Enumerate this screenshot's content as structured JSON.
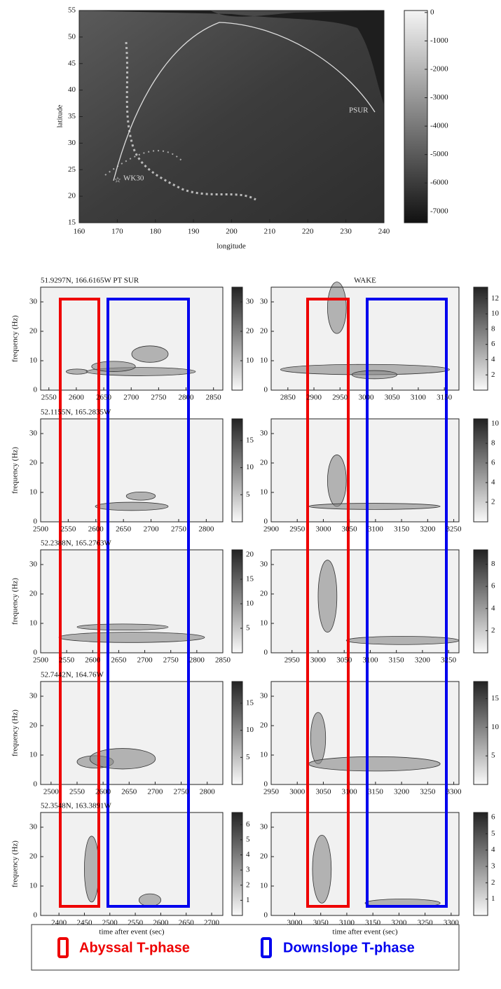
{
  "map": {
    "xlabel": "longitude",
    "ylabel": "latitude",
    "xlim": [
      160,
      240
    ],
    "ylim": [
      15,
      55
    ],
    "xticks": [
      160,
      170,
      180,
      190,
      200,
      210,
      220,
      230,
      240
    ],
    "yticks": [
      15,
      20,
      25,
      30,
      35,
      40,
      45,
      50,
      55
    ],
    "colorbar": {
      "lim": [
        -7400,
        70
      ],
      "ticks": [
        0,
        -1000,
        -2000,
        -3000,
        -4000,
        -5000,
        -6000,
        -7000
      ]
    },
    "stations": [
      "WK30",
      "PSUR"
    ]
  },
  "ylabel": "frequency (Hz)",
  "xlabel": "time after event (sec)",
  "panels": [
    {
      "title": "51.9297N, 166.6165W PT SUR",
      "xlim": [
        2535,
        2867
      ],
      "xticks": [
        2550,
        2600,
        2650,
        2700,
        2750,
        2800,
        2850
      ],
      "ylim": [
        0,
        35
      ],
      "yticks": [
        0,
        10,
        20,
        30
      ],
      "clim": [
        0,
        35
      ],
      "cticks": [
        10,
        20,
        30
      ]
    },
    {
      "title": "WAKE",
      "xlim": [
        2818,
        3178
      ],
      "xticks": [
        2850,
        2900,
        2950,
        3000,
        3050,
        3100,
        3150
      ],
      "ylim": [
        0,
        35
      ],
      "yticks": [
        0,
        10,
        20,
        30
      ],
      "clim": [
        0,
        13.5
      ],
      "cticks": [
        2,
        4,
        6,
        8,
        10,
        12
      ]
    },
    {
      "title": "52.1155N, 165.2835W",
      "xlim": [
        2500,
        2830
      ],
      "xticks": [
        2500,
        2550,
        2600,
        2650,
        2700,
        2750,
        2800
      ],
      "ylim": [
        0,
        35
      ],
      "yticks": [
        0,
        10,
        20,
        30
      ],
      "clim": [
        0,
        19
      ],
      "cticks": [
        5,
        10,
        15
      ]
    },
    {
      "title": null,
      "xlim": [
        2900,
        3260
      ],
      "xticks": [
        2900,
        2950,
        3000,
        3050,
        3100,
        3150,
        3200,
        3250
      ],
      "ylim": [
        0,
        35
      ],
      "yticks": [
        0,
        10,
        20,
        30
      ],
      "clim": [
        0,
        10.5
      ],
      "cticks": [
        2,
        4,
        6,
        8,
        10
      ]
    },
    {
      "title": "52.2388N, 165.2763W",
      "xlim": [
        2500,
        2850
      ],
      "xticks": [
        2500,
        2550,
        2600,
        2650,
        2700,
        2750,
        2800,
        2850
      ],
      "ylim": [
        0,
        35
      ],
      "yticks": [
        0,
        10,
        20,
        30
      ],
      "clim": [
        0,
        21
      ],
      "cticks": [
        5,
        10,
        15,
        20
      ]
    },
    {
      "title": null,
      "xlim": [
        2910,
        3270
      ],
      "xticks": [
        2950,
        3000,
        3050,
        3100,
        3150,
        3200,
        3250
      ],
      "ylim": [
        0,
        35
      ],
      "yticks": [
        0,
        10,
        20,
        30
      ],
      "clim": [
        0,
        9.3
      ],
      "cticks": [
        2,
        4,
        6,
        8
      ]
    },
    {
      "title": "52.7442N, 164.76W",
      "xlim": [
        2480,
        2830
      ],
      "xticks": [
        2500,
        2550,
        2600,
        2650,
        2700,
        2750,
        2800
      ],
      "ylim": [
        0,
        35
      ],
      "yticks": [
        0,
        10,
        20,
        30
      ],
      "clim": [
        0,
        19
      ],
      "cticks": [
        5,
        10,
        15
      ]
    },
    {
      "title": null,
      "xlim": [
        2950,
        3310
      ],
      "xticks": [
        2950,
        3000,
        3050,
        3100,
        3150,
        3200,
        3250,
        3300
      ],
      "ylim": [
        0,
        35
      ],
      "yticks": [
        0,
        10,
        20,
        30
      ],
      "clim": [
        0,
        18
      ],
      "cticks": [
        5,
        10,
        15
      ]
    },
    {
      "title": "52.3548N, 163.3891W",
      "xlim": [
        2364,
        2722
      ],
      "xticks": [
        2400,
        2450,
        2500,
        2550,
        2600,
        2650,
        2700
      ],
      "ylim": [
        0,
        35
      ],
      "yticks": [
        0,
        10,
        20,
        30
      ],
      "clim": [
        0,
        6.8
      ],
      "cticks": [
        1,
        2,
        3,
        4,
        5,
        6
      ]
    },
    {
      "title": null,
      "xlim": [
        2955,
        3315
      ],
      "xticks": [
        3000,
        3050,
        3100,
        3150,
        3200,
        3250,
        3300
      ],
      "ylim": [
        0,
        35
      ],
      "yticks": [
        0,
        10,
        20,
        30
      ],
      "clim": [
        0,
        6.3
      ],
      "cticks": [
        1,
        2,
        3,
        4,
        5,
        6
      ]
    }
  ],
  "legend": [
    "Abyssal T-phase",
    "Downslope T-phase"
  ]
}
